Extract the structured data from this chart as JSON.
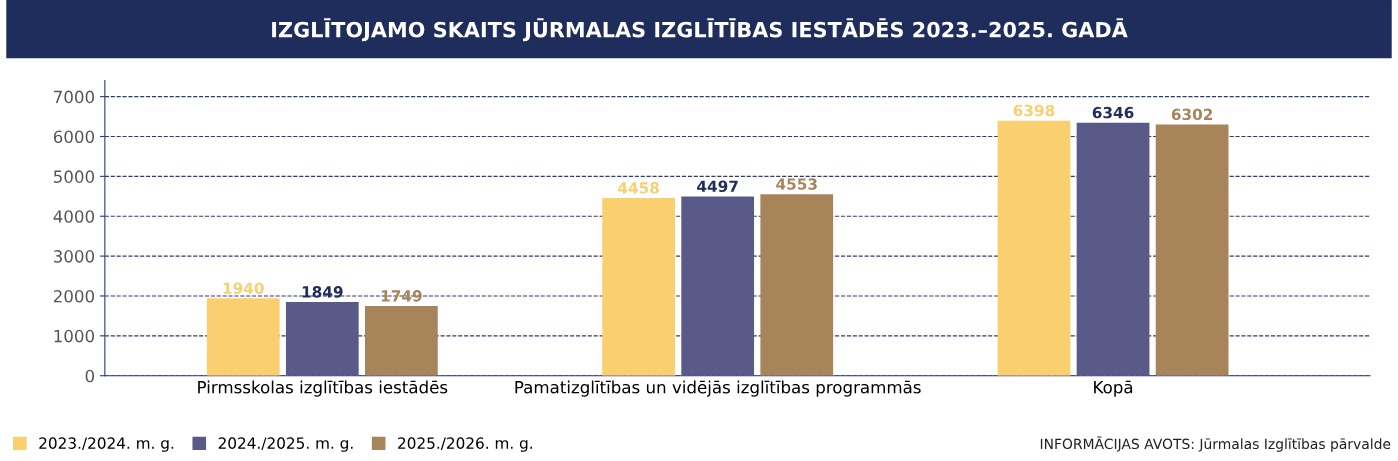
{
  "chart_data": {
    "type": "bar",
    "title": "IZGLĪTOJAMO SKAITS JŪRMALAS IZGLĪTĪBAS IESTĀDĒS 2023.–2025. GADĀ",
    "categories": [
      "Pirmsskolas izglītības iestādēs",
      "Pamatizglītības un vidējās izglītības programmās",
      "Kopā"
    ],
    "series": [
      {
        "name": "2023./2024. m. g.",
        "color": "#f9cf70",
        "values": [
          1940,
          4458,
          6398
        ]
      },
      {
        "name": "2024./2025. m. g.",
        "color": "#5a5a88",
        "values": [
          1849,
          4497,
          6346
        ]
      },
      {
        "name": "2025./2026. m. g.",
        "color": "#a8845a",
        "values": [
          1749,
          4553,
          6302
        ]
      }
    ],
    "ylim": [
      0,
      7400
    ],
    "yticks": [
      0,
      1000,
      2000,
      3000,
      4000,
      5000,
      6000,
      7000
    ],
    "grid": "y",
    "legend": "bottom left",
    "data_labels": true,
    "annotations": [
      "INFORMĀCIJAS AVOTS: Jūrmalas Izglītības pārvalde"
    ]
  }
}
